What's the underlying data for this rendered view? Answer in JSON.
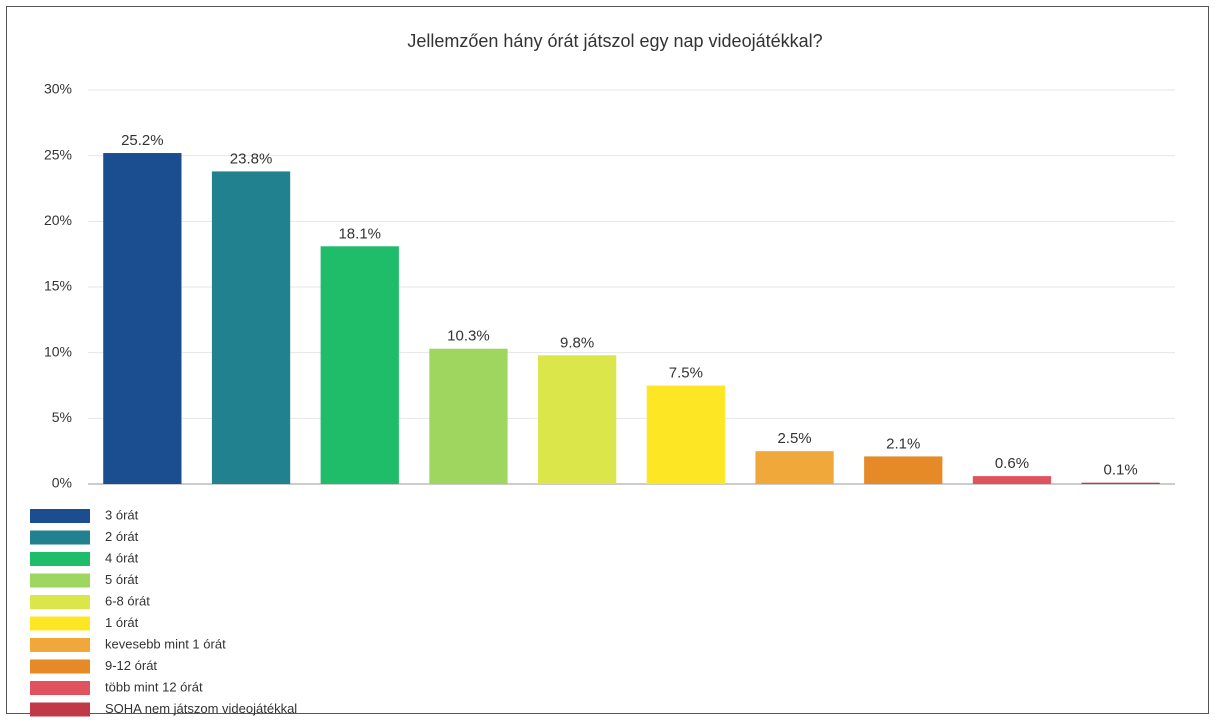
{
  "chart_data": {
    "type": "bar",
    "title": "Jellemzően hány órát játszol egy nap videojátékkal?",
    "categories": [
      "3 órát",
      "2 órát",
      "4 órát",
      "5 órát",
      "6-8 órát",
      "1 órát",
      "kevesebb mint 1 órát",
      "9-12 órát",
      "több mint 12 órát",
      "SOHA nem játszom videojátékkal"
    ],
    "values": [
      25.2,
      23.8,
      18.1,
      10.3,
      9.8,
      7.5,
      2.5,
      2.1,
      0.6,
      0.1
    ],
    "value_labels": [
      "25.2%",
      "23.8%",
      "18.1%",
      "10.3%",
      "9.8%",
      "7.5%",
      "2.5%",
      "2.1%",
      "0.6%",
      "0.1%"
    ],
    "colors": [
      "#1a4e91",
      "#22818f",
      "#1fbc6a",
      "#9ed65f",
      "#dbe64b",
      "#fde725",
      "#f0a83a",
      "#e68a27",
      "#e0535e",
      "#c13947"
    ],
    "ylim": [
      0,
      30
    ],
    "yticks": [
      {
        "value": 0,
        "label": "0%"
      },
      {
        "value": 5,
        "label": "5%"
      },
      {
        "value": 10,
        "label": "10%"
      },
      {
        "value": 15,
        "label": "15%"
      },
      {
        "value": 20,
        "label": "20%"
      },
      {
        "value": 25,
        "label": "25%"
      },
      {
        "value": 30,
        "label": "30%"
      }
    ],
    "grid": true,
    "legend": "bottom-left"
  }
}
